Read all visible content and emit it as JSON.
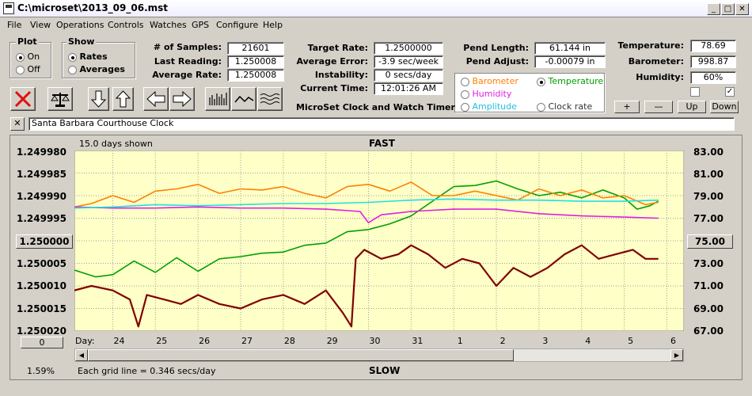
{
  "window": {
    "title": "C:\\microset\\2013_09_06.mst"
  },
  "menu": [
    "File",
    "View",
    "Operations",
    "Controls",
    "Watches",
    "GPS",
    "Configure",
    "Help"
  ],
  "plot_group": {
    "label": "Plot",
    "on": "On",
    "off": "Off",
    "selected": "On"
  },
  "show_group": {
    "label": "Show",
    "rates": "Rates",
    "averages": "Averages",
    "selected": "Rates"
  },
  "stats": {
    "samples_label": "# of Samples:",
    "samples": "21601",
    "last_label": "Last Reading:",
    "last": "1.250008",
    "avg_label": "Average Rate:",
    "avg": "1.250008",
    "target_label": "Target Rate:",
    "target": "1.2500000",
    "err_label": "Average Error:",
    "err": "-3.9 sec/week",
    "inst_label": "Instability:",
    "inst": "0 secs/day",
    "time_label": "Current Time:",
    "time": "12:01:26 AM",
    "pend_len_label": "Pend Length:",
    "pend_len": "61.144 in",
    "pend_adj_label": "Pend Adjust:",
    "pend_adj": "-0.00079 in",
    "temp_label": "Temperature:",
    "temp": "78.69",
    "baro_label": "Barometer:",
    "baro": "998.87",
    "hum_label": "Humidity:",
    "hum": "60%"
  },
  "app_caption": "MicroSet Clock and Watch Timer",
  "sensors": {
    "barometer": "Barometer",
    "temperature": "Temperature",
    "humidity": "Humidity",
    "amplitude": "Amplitude",
    "clock_rate": "Clock rate",
    "selected": "Temperature"
  },
  "checks": {
    "left": false,
    "right": true
  },
  "scale_buttons": {
    "plus": "+",
    "minus": "—",
    "up": "Up",
    "down": "Down"
  },
  "watch_name": "Santa Barbara Courthouse Clock",
  "graph": {
    "days_shown": "15.0 days shown",
    "top_label": "FAST",
    "bottom_label": "SLOW",
    "left_offset_button": "1.250000",
    "right_offset_button": "75.00",
    "zero_button": "0",
    "day_prefix": "Day:",
    "percent": "1.59%",
    "grid_note": "Each grid line = 0.346 secs/day"
  },
  "colors": {
    "rate": "#800000",
    "temperature": "#00a000",
    "barometer": "#ff8000",
    "humidity": "#e020e0",
    "amplitude": "#20e0e0",
    "plot_bg": "#ffffc8"
  },
  "chart_data": {
    "type": "line",
    "title": "FAST",
    "xlabel": "Day:",
    "x_ticks": [
      "24",
      "25",
      "26",
      "27",
      "28",
      "29",
      "30",
      "31",
      "1",
      "2",
      "3",
      "4",
      "5",
      "6"
    ],
    "y_left_ticks": [
      "1.249980",
      "1.249985",
      "1.249990",
      "1.249995",
      "1.250000",
      "1.250005",
      "1.250010",
      "1.250015",
      "1.250020"
    ],
    "y_left_range": [
      1.24998,
      1.25002
    ],
    "y_left_inverted": true,
    "y_right_ticks": [
      "83.00",
      "81.00",
      "79.00",
      "77.00",
      "75.00",
      "73.00",
      "71.00",
      "69.00",
      "67.00"
    ],
    "y_right_range": [
      67,
      83
    ],
    "grid": true,
    "series": [
      {
        "name": "Rate",
        "axis": "left",
        "color": "#800000",
        "x": [
          23.1,
          23.5,
          24.0,
          24.4,
          24.6,
          24.8,
          25.2,
          25.6,
          26.0,
          26.5,
          27.0,
          27.5,
          28.0,
          28.5,
          29.0,
          29.4,
          29.6,
          29.7,
          29.9,
          30.3,
          30.7,
          31.0,
          31.4,
          31.8,
          32.2,
          32.6,
          33.0,
          33.4,
          33.8,
          34.2,
          34.6,
          35.0,
          35.4,
          35.8,
          36.2,
          36.5,
          36.8
        ],
        "y": [
          1.250011,
          1.25001,
          1.250011,
          1.250013,
          1.250019,
          1.250012,
          1.250013,
          1.250014,
          1.250012,
          1.250014,
          1.250015,
          1.250013,
          1.250012,
          1.250014,
          1.250011,
          1.250016,
          1.250019,
          1.250004,
          1.250002,
          1.250004,
          1.250003,
          1.250001,
          1.250003,
          1.250006,
          1.250004,
          1.250005,
          1.25001,
          1.250006,
          1.250008,
          1.250006,
          1.250003,
          1.250001,
          1.250004,
          1.250003,
          1.250002,
          1.250004,
          1.250004
        ]
      },
      {
        "name": "Temperature",
        "axis": "right",
        "color": "#00a000",
        "x": [
          23.1,
          23.6,
          24.0,
          24.5,
          25.0,
          25.5,
          26.0,
          26.5,
          27.0,
          27.5,
          28.0,
          28.5,
          29.0,
          29.5,
          30.0,
          30.5,
          31.0,
          31.5,
          32.0,
          32.5,
          33.0,
          33.5,
          34.0,
          34.5,
          35.0,
          35.5,
          36.0,
          36.3,
          36.6,
          36.8
        ],
        "y": [
          72.4,
          71.8,
          72.0,
          73.2,
          72.2,
          73.5,
          72.3,
          73.4,
          73.6,
          73.9,
          74.0,
          74.6,
          74.8,
          75.8,
          76.0,
          76.5,
          77.2,
          78.5,
          79.8,
          79.9,
          80.3,
          79.6,
          79.0,
          79.3,
          78.8,
          79.5,
          78.8,
          77.8,
          78.1,
          78.5
        ]
      },
      {
        "name": "Barometer",
        "axis": "right",
        "color": "#ff8000",
        "x": [
          23.1,
          23.5,
          24.0,
          24.5,
          25.0,
          25.5,
          26.0,
          26.5,
          27.0,
          27.5,
          28.0,
          28.5,
          29.0,
          29.5,
          30.0,
          30.5,
          31.0,
          31.5,
          32.0,
          32.5,
          33.0,
          33.5,
          34.0,
          34.5,
          35.0,
          35.5,
          36.0,
          36.5,
          36.8
        ],
        "y": [
          78.0,
          78.3,
          79.0,
          78.4,
          79.4,
          79.6,
          80.0,
          79.2,
          79.6,
          79.5,
          79.8,
          79.2,
          78.8,
          79.8,
          80.0,
          79.4,
          80.2,
          79.0,
          79.0,
          79.4,
          79.0,
          78.6,
          79.6,
          79.0,
          79.5,
          78.8,
          79.0,
          78.2,
          78.4
        ]
      },
      {
        "name": "Humidity",
        "axis": "right",
        "color": "#e020e0",
        "x": [
          23.1,
          24.0,
          25.0,
          26.0,
          27.0,
          28.0,
          29.0,
          29.8,
          30.0,
          30.3,
          31.0,
          32.0,
          33.0,
          34.0,
          35.0,
          36.0,
          36.8
        ],
        "y": [
          78.0,
          77.9,
          77.9,
          78.0,
          77.9,
          77.9,
          77.8,
          77.6,
          76.6,
          77.3,
          77.6,
          77.8,
          77.8,
          77.4,
          77.2,
          77.1,
          77.0
        ]
      },
      {
        "name": "Amplitude",
        "axis": "right",
        "color": "#20e0e0",
        "x": [
          23.1,
          24.0,
          25.0,
          26.0,
          27.0,
          28.0,
          29.0,
          30.0,
          31.0,
          32.0,
          33.0,
          34.0,
          35.0,
          36.0,
          36.8
        ],
        "y": [
          77.9,
          78.0,
          78.2,
          78.1,
          78.2,
          78.3,
          78.3,
          78.4,
          78.6,
          78.7,
          78.6,
          78.6,
          78.5,
          78.5,
          78.6
        ]
      }
    ]
  }
}
